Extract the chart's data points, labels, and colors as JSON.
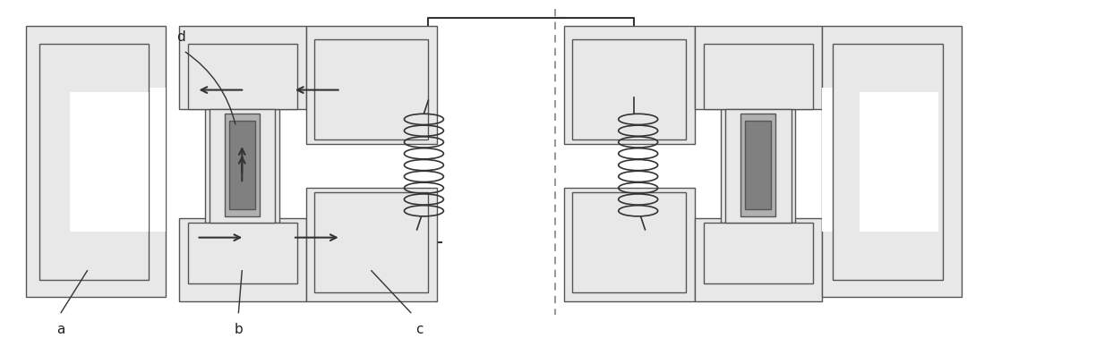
{
  "fig_width": 12.33,
  "fig_height": 3.78,
  "bg_color": "#ffffff",
  "light_gray": "#e8e8e8",
  "mid_gray": "#b0b0b0",
  "dark_gray": "#808080",
  "border_color": "#555555",
  "line_color": "#333333",
  "dashed_line_color": "#888888",
  "label_a": "a",
  "label_b": "b",
  "label_c": "c",
  "label_d": "d"
}
